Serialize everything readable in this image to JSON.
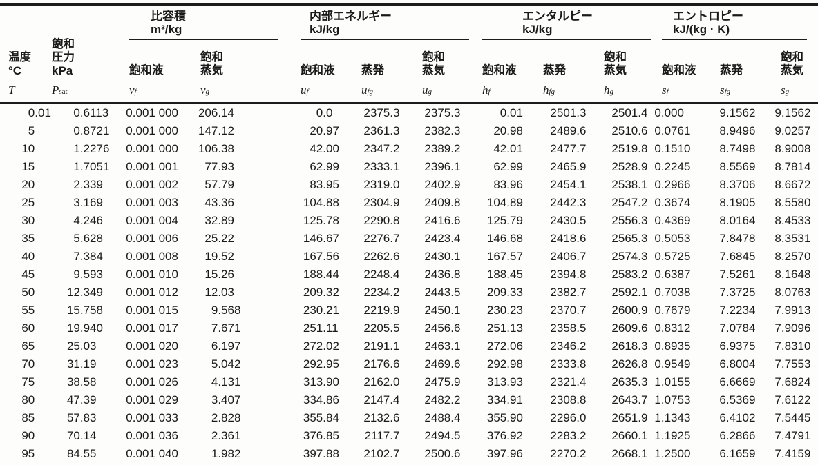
{
  "table": {
    "groups": [
      {
        "title": "比容積",
        "unit": "m³/kg"
      },
      {
        "title": "内部エネルギー",
        "unit": "kJ/kg"
      },
      {
        "title": "エンタルピー",
        "unit": "kJ/kg"
      },
      {
        "title": "エントロピー",
        "unit": "kJ/(kg · K)"
      }
    ],
    "columns": [
      {
        "key": "T",
        "jp": [
          "温度"
        ],
        "unit": "°C",
        "sym": "T",
        "sub": ""
      },
      {
        "key": "Psat",
        "jp": [
          "飽和",
          "圧力"
        ],
        "unit": "kPa",
        "sym": "P",
        "sub": "sat"
      },
      {
        "key": "vf",
        "jp": [
          "飽和液"
        ],
        "unit": "",
        "sym": "v",
        "sub": "f"
      },
      {
        "key": "vg",
        "jp": [
          "飽和",
          "蒸気"
        ],
        "unit": "",
        "sym": "v",
        "sub": "g"
      },
      {
        "key": "uf",
        "jp": [
          "飽和液"
        ],
        "unit": "",
        "sym": "u",
        "sub": "f"
      },
      {
        "key": "ufg",
        "jp": [
          "蒸発"
        ],
        "unit": "",
        "sym": "u",
        "sub": "fg"
      },
      {
        "key": "ug",
        "jp": [
          "飽和",
          "蒸気"
        ],
        "unit": "",
        "sym": "u",
        "sub": "g"
      },
      {
        "key": "hf",
        "jp": [
          "飽和液"
        ],
        "unit": "",
        "sym": "h",
        "sub": "f"
      },
      {
        "key": "hfg",
        "jp": [
          "蒸発"
        ],
        "unit": "",
        "sym": "h",
        "sub": "fg"
      },
      {
        "key": "hg",
        "jp": [
          "飽和",
          "蒸気"
        ],
        "unit": "",
        "sym": "h",
        "sub": "g"
      },
      {
        "key": "sf",
        "jp": [
          "飽和液"
        ],
        "unit": "",
        "sym": "s",
        "sub": "f"
      },
      {
        "key": "sfg",
        "jp": [
          "蒸発"
        ],
        "unit": "",
        "sym": "s",
        "sub": "fg"
      },
      {
        "key": "sg",
        "jp": [
          "飽和",
          "蒸気"
        ],
        "unit": "",
        "sym": "s",
        "sub": "g"
      }
    ],
    "rows": [
      [
        "0.01",
        "0.6113",
        "0.001 000",
        "206.14",
        "0.0",
        "2375.3",
        "2375.3",
        "0.01",
        "2501.3",
        "2501.4",
        "0.000",
        "9.1562",
        "9.1562"
      ],
      [
        "5",
        "0.8721",
        "0.001 000",
        "147.12",
        "20.97",
        "2361.3",
        "2382.3",
        "20.98",
        "2489.6",
        "2510.6",
        "0.0761",
        "8.9496",
        "9.0257"
      ],
      [
        "10",
        "1.2276",
        "0.001 000",
        "106.38",
        "42.00",
        "2347.2",
        "2389.2",
        "42.01",
        "2477.7",
        "2519.8",
        "0.1510",
        "8.7498",
        "8.9008"
      ],
      [
        "15",
        "1.7051",
        "0.001 001",
        "77.93",
        "62.99",
        "2333.1",
        "2396.1",
        "62.99",
        "2465.9",
        "2528.9",
        "0.2245",
        "8.5569",
        "8.7814"
      ],
      [
        "20",
        "2.339",
        "0.001 002",
        "57.79",
        "83.95",
        "2319.0",
        "2402.9",
        "83.96",
        "2454.1",
        "2538.1",
        "0.2966",
        "8.3706",
        "8.6672"
      ],
      [
        "25",
        "3.169",
        "0.001 003",
        "43.36",
        "104.88",
        "2304.9",
        "2409.8",
        "104.89",
        "2442.3",
        "2547.2",
        "0.3674",
        "8.1905",
        "8.5580"
      ],
      [
        "30",
        "4.246",
        "0.001 004",
        "32.89",
        "125.78",
        "2290.8",
        "2416.6",
        "125.79",
        "2430.5",
        "2556.3",
        "0.4369",
        "8.0164",
        "8.4533"
      ],
      [
        "35",
        "5.628",
        "0.001 006",
        "25.22",
        "146.67",
        "2276.7",
        "2423.4",
        "146.68",
        "2418.6",
        "2565.3",
        "0.5053",
        "7.8478",
        "8.3531"
      ],
      [
        "40",
        "7.384",
        "0.001 008",
        "19.52",
        "167.56",
        "2262.6",
        "2430.1",
        "167.57",
        "2406.7",
        "2574.3",
        "0.5725",
        "7.6845",
        "8.2570"
      ],
      [
        "45",
        "9.593",
        "0.001 010",
        "15.26",
        "188.44",
        "2248.4",
        "2436.8",
        "188.45",
        "2394.8",
        "2583.2",
        "0.6387",
        "7.5261",
        "8.1648"
      ],
      [
        "50",
        "12.349",
        "0.001 012",
        "12.03",
        "209.32",
        "2234.2",
        "2443.5",
        "209.33",
        "2382.7",
        "2592.1",
        "0.7038",
        "7.3725",
        "8.0763"
      ],
      [
        "55",
        "15.758",
        "0.001 015",
        "9.568",
        "230.21",
        "2219.9",
        "2450.1",
        "230.23",
        "2370.7",
        "2600.9",
        "0.7679",
        "7.2234",
        "7.9913"
      ],
      [
        "60",
        "19.940",
        "0.001 017",
        "7.671",
        "251.11",
        "2205.5",
        "2456.6",
        "251.13",
        "2358.5",
        "2609.6",
        "0.8312",
        "7.0784",
        "7.9096"
      ],
      [
        "65",
        "25.03",
        "0.001 020",
        "6.197",
        "272.02",
        "2191.1",
        "2463.1",
        "272.06",
        "2346.2",
        "2618.3",
        "0.8935",
        "6.9375",
        "7.8310"
      ],
      [
        "70",
        "31.19",
        "0.001 023",
        "5.042",
        "292.95",
        "2176.6",
        "2469.6",
        "292.98",
        "2333.8",
        "2626.8",
        "0.9549",
        "6.8004",
        "7.7553"
      ],
      [
        "75",
        "38.58",
        "0.001 026",
        "4.131",
        "313.90",
        "2162.0",
        "2475.9",
        "313.93",
        "2321.4",
        "2635.3",
        "1.0155",
        "6.6669",
        "7.6824"
      ],
      [
        "80",
        "47.39",
        "0.001 029",
        "3.407",
        "334.86",
        "2147.4",
        "2482.2",
        "334.91",
        "2308.8",
        "2643.7",
        "1.0753",
        "6.5369",
        "7.6122"
      ],
      [
        "85",
        "57.83",
        "0.001 033",
        "2.828",
        "355.84",
        "2132.6",
        "2488.4",
        "355.90",
        "2296.0",
        "2651.9",
        "1.1343",
        "6.4102",
        "7.5445"
      ],
      [
        "90",
        "70.14",
        "0.001 036",
        "2.361",
        "376.85",
        "2117.7",
        "2494.5",
        "376.92",
        "2283.2",
        "2660.1",
        "1.1925",
        "6.2866",
        "7.4791"
      ],
      [
        "95",
        "84.55",
        "0.001 040",
        "1.982",
        "397.88",
        "2102.7",
        "2500.6",
        "397.96",
        "2270.2",
        "2668.1",
        "1.2500",
        "6.1659",
        "7.4159"
      ]
    ]
  }
}
